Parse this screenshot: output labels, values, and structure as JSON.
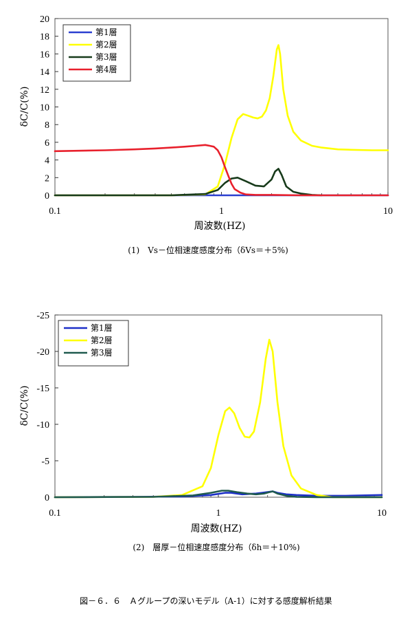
{
  "figure_caption": "図－６．６　Ａグループの深いモデル（A-1）に対する感度解析結果",
  "chart_data": [
    {
      "type": "line",
      "x_scale": "log",
      "xlim": [
        0.1,
        10
      ],
      "ylim": [
        0,
        20
      ],
      "y_ticks": [
        0,
        2,
        4,
        6,
        8,
        10,
        12,
        14,
        16,
        18,
        20
      ],
      "x_ticks": [
        "0.1",
        "1",
        "10"
      ],
      "xlabel": "周波数(HZ)",
      "ylabel": "δC/C(%)",
      "caption": "(1)　Vs－位相速度感度分布（δVs＝＋5%)",
      "grid": false,
      "legend_position": "top-left",
      "series": [
        {
          "name": "第1層",
          "color": "#2a3fd0",
          "x": [
            0.1,
            10
          ],
          "y": [
            0,
            0
          ]
        },
        {
          "name": "第2層",
          "color": "#ffff00",
          "x": [
            0.1,
            0.5,
            0.8,
            0.95,
            1.05,
            1.15,
            1.25,
            1.35,
            1.45,
            1.55,
            1.65,
            1.75,
            1.85,
            1.95,
            2.05,
            2.15,
            2.2,
            2.25,
            2.35,
            2.5,
            2.7,
            3.0,
            3.5,
            4.0,
            5.0,
            6.0,
            8.0,
            10.0
          ],
          "y": [
            0,
            0,
            0.1,
            1.0,
            3.5,
            6.5,
            8.6,
            9.2,
            9.0,
            8.8,
            8.7,
            8.9,
            9.6,
            11.0,
            13.5,
            16.5,
            17.0,
            16.0,
            12.0,
            9.0,
            7.2,
            6.2,
            5.6,
            5.4,
            5.2,
            5.15,
            5.1,
            5.1
          ]
        },
        {
          "name": "第3層",
          "color": "#173a1a",
          "x": [
            0.1,
            0.5,
            0.8,
            0.95,
            1.05,
            1.15,
            1.25,
            1.4,
            1.6,
            1.8,
            2.0,
            2.1,
            2.2,
            2.3,
            2.45,
            2.7,
            3.0,
            3.5,
            4.0
          ],
          "y": [
            0,
            0,
            0.15,
            0.6,
            1.4,
            1.9,
            2.0,
            1.6,
            1.1,
            1.0,
            1.8,
            2.7,
            3.0,
            2.3,
            1.0,
            0.4,
            0.2,
            0.05,
            0
          ]
        },
        {
          "name": "第4層",
          "color": "#e8202c",
          "x": [
            0.1,
            0.2,
            0.3,
            0.4,
            0.5,
            0.6,
            0.7,
            0.8,
            0.85,
            0.9,
            0.95,
            1.0,
            1.05,
            1.1,
            1.15,
            1.2,
            1.3,
            1.4,
            1.6,
            2.0,
            3.0,
            10.0
          ],
          "y": [
            5.0,
            5.1,
            5.2,
            5.3,
            5.4,
            5.5,
            5.6,
            5.7,
            5.6,
            5.5,
            5.1,
            4.3,
            3.2,
            2.2,
            1.3,
            0.7,
            0.3,
            0.1,
            0.05,
            0.05,
            0,
            0
          ]
        }
      ]
    },
    {
      "type": "line",
      "x_scale": "log",
      "xlim": [
        0.1,
        10
      ],
      "ylim": [
        0,
        -25
      ],
      "y_ticks": [
        0,
        -5,
        -10,
        -15,
        -20,
        -25
      ],
      "x_ticks": [
        "0.1",
        "1",
        "10"
      ],
      "xlabel": "周波数(HZ)",
      "ylabel": "δC/C(%)",
      "caption": "(2)　層厚－位相速度感度分布（δh＝＋10%)",
      "grid": false,
      "legend_position": "top-left",
      "series": [
        {
          "name": "第1層",
          "color": "#1c2fc8",
          "x": [
            0.1,
            0.3,
            0.6,
            0.9,
            1.1,
            1.2,
            1.4,
            1.7,
            2.0,
            2.15,
            2.3,
            2.6,
            3.0,
            4.0,
            6.0,
            10.0
          ],
          "y": [
            0,
            -0.05,
            -0.1,
            -0.3,
            -0.6,
            -0.6,
            -0.4,
            -0.5,
            -0.7,
            -0.8,
            -0.6,
            -0.4,
            -0.3,
            -0.2,
            -0.2,
            -0.3
          ]
        },
        {
          "name": "第2層",
          "color": "#ffff00",
          "x": [
            0.1,
            0.4,
            0.6,
            0.8,
            0.9,
            1.0,
            1.1,
            1.17,
            1.25,
            1.35,
            1.45,
            1.55,
            1.65,
            1.8,
            1.95,
            2.05,
            2.15,
            2.3,
            2.5,
            2.8,
            3.2,
            4.0,
            5.0,
            10.0
          ],
          "y": [
            0,
            -0.05,
            -0.3,
            -1.5,
            -4.0,
            -8.5,
            -11.8,
            -12.3,
            -11.5,
            -9.5,
            -8.3,
            -8.2,
            -9.0,
            -13.0,
            -19.0,
            -21.6,
            -20.0,
            -13.0,
            -7.0,
            -3.0,
            -1.2,
            -0.3,
            0,
            0
          ]
        },
        {
          "name": "第3層",
          "color": "#1f5a4e",
          "x": [
            0.1,
            0.4,
            0.7,
            0.9,
            1.05,
            1.15,
            1.3,
            1.5,
            1.7,
            1.9,
            2.05,
            2.15,
            2.3,
            2.6,
            3.0,
            4.0,
            10.0
          ],
          "y": [
            0,
            -0.05,
            -0.25,
            -0.6,
            -0.9,
            -0.9,
            -0.7,
            -0.5,
            -0.4,
            -0.5,
            -0.7,
            -0.8,
            -0.5,
            -0.2,
            -0.05,
            0,
            0
          ]
        }
      ]
    }
  ]
}
